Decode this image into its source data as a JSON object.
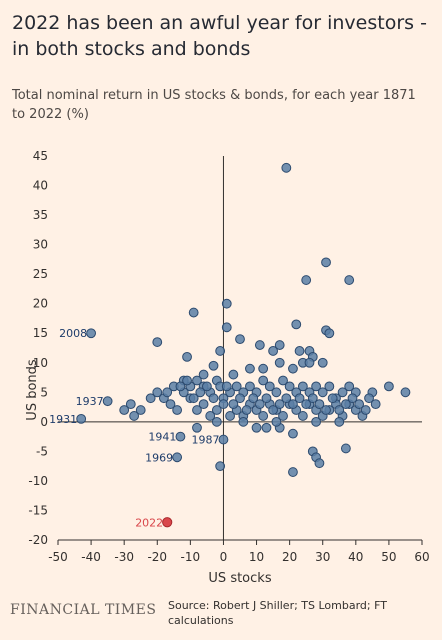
{
  "title": "2022 has been an awful year for investors - in both stocks and bonds",
  "subtitle": "Total nominal return in US stocks & bonds, for each year 1871 to 2022 (%)",
  "footer": {
    "logo": "FINANCIAL TIMES",
    "source": "Source: Robert J Shiller; TS Lombard; FT calculations"
  },
  "colors": {
    "background": "#fff1e5",
    "point": "#5a7fa6",
    "point_stroke": "#2c4a6e",
    "highlight": "#d9474b",
    "label": "#1f3d6b"
  },
  "chart_data": {
    "type": "scatter",
    "title": "",
    "xlabel": "US stocks",
    "ylabel": "US bonds",
    "xlim": [
      -50,
      60
    ],
    "ylim": [
      -20,
      45
    ],
    "xticks": [
      -50,
      -40,
      -30,
      -20,
      -10,
      0,
      10,
      20,
      30,
      40,
      50,
      60
    ],
    "yticks": [
      -20,
      -15,
      -10,
      -5,
      0,
      5,
      10,
      15,
      20,
      25,
      30,
      35,
      40,
      45
    ],
    "grid": false,
    "highlighted": [
      {
        "label": "2022",
        "x": -17,
        "y": -17,
        "color": "#d9474b"
      }
    ],
    "labeled_points": [
      {
        "label": "2008",
        "x": -40,
        "y": 15
      },
      {
        "label": "1937",
        "x": -35,
        "y": 3.5
      },
      {
        "label": "1931",
        "x": -43,
        "y": 0.5
      },
      {
        "label": "1941",
        "x": -13,
        "y": -2.5
      },
      {
        "label": "1987",
        "x": 0,
        "y": -3
      },
      {
        "label": "1969",
        "x": -14,
        "y": -6
      }
    ],
    "points": [
      [
        19,
        43
      ],
      [
        31,
        27
      ],
      [
        25,
        24
      ],
      [
        38,
        24
      ],
      [
        1,
        20
      ],
      [
        -9,
        18.5
      ],
      [
        31,
        15.5
      ],
      [
        32,
        15
      ],
      [
        22,
        16.5
      ],
      [
        -20,
        13.5
      ],
      [
        1,
        16
      ],
      [
        5,
        14
      ],
      [
        11,
        13
      ],
      [
        17,
        13
      ],
      [
        26,
        12
      ],
      [
        15,
        12
      ],
      [
        23,
        12
      ],
      [
        27,
        11
      ],
      [
        -11,
        11
      ],
      [
        -1,
        12
      ],
      [
        3,
        8
      ],
      [
        8,
        9
      ],
      [
        12,
        9
      ],
      [
        17,
        10
      ],
      [
        21,
        9
      ],
      [
        24,
        10
      ],
      [
        26,
        10
      ],
      [
        30,
        10
      ],
      [
        -3,
        9.5
      ],
      [
        -6,
        8
      ],
      [
        -15,
        6
      ],
      [
        -12,
        7
      ],
      [
        -10,
        6
      ],
      [
        -8,
        7
      ],
      [
        -6,
        6
      ],
      [
        -4,
        5
      ],
      [
        -2,
        7
      ],
      [
        0,
        4
      ],
      [
        2,
        5
      ],
      [
        4,
        6
      ],
      [
        6,
        5
      ],
      [
        8,
        6
      ],
      [
        10,
        5
      ],
      [
        12,
        7
      ],
      [
        14,
        6
      ],
      [
        16,
        5
      ],
      [
        18,
        7
      ],
      [
        20,
        6
      ],
      [
        22,
        5
      ],
      [
        24,
        6
      ],
      [
        26,
        5
      ],
      [
        28,
        6
      ],
      [
        30,
        5
      ],
      [
        32,
        6
      ],
      [
        34,
        4
      ],
      [
        36,
        5
      ],
      [
        38,
        6
      ],
      [
        40,
        5
      ],
      [
        45,
        5
      ],
      [
        50,
        6
      ],
      [
        55,
        5
      ],
      [
        -25,
        2
      ],
      [
        -22,
        4
      ],
      [
        -18,
        4
      ],
      [
        -16,
        3
      ],
      [
        -14,
        2
      ],
      [
        -12,
        5
      ],
      [
        -10,
        4
      ],
      [
        -8,
        2
      ],
      [
        -6,
        3
      ],
      [
        -4,
        1
      ],
      [
        -2,
        2
      ],
      [
        0,
        3
      ],
      [
        2,
        1
      ],
      [
        4,
        2
      ],
      [
        6,
        1
      ],
      [
        8,
        3
      ],
      [
        10,
        2
      ],
      [
        12,
        1
      ],
      [
        14,
        3
      ],
      [
        16,
        2
      ],
      [
        18,
        1
      ],
      [
        20,
        3
      ],
      [
        22,
        2
      ],
      [
        24,
        1
      ],
      [
        26,
        3
      ],
      [
        28,
        2
      ],
      [
        30,
        1
      ],
      [
        32,
        2
      ],
      [
        34,
        3
      ],
      [
        36,
        1
      ],
      [
        38,
        3
      ],
      [
        40,
        2
      ],
      [
        42,
        1
      ],
      [
        44,
        4
      ],
      [
        46,
        3
      ],
      [
        -28,
        3
      ],
      [
        -30,
        2
      ],
      [
        -27,
        1
      ],
      [
        -20,
        5
      ],
      [
        -17,
        5
      ],
      [
        -13,
        6
      ],
      [
        -11,
        7
      ],
      [
        -9,
        4
      ],
      [
        -7,
        5
      ],
      [
        -5,
        6
      ],
      [
        -3,
        4
      ],
      [
        -1,
        6
      ],
      [
        1,
        6
      ],
      [
        3,
        3
      ],
      [
        5,
        4
      ],
      [
        7,
        2
      ],
      [
        9,
        4
      ],
      [
        11,
        3
      ],
      [
        13,
        4
      ],
      [
        15,
        2
      ],
      [
        17,
        3
      ],
      [
        19,
        4
      ],
      [
        21,
        3
      ],
      [
        23,
        4
      ],
      [
        25,
        3
      ],
      [
        27,
        4
      ],
      [
        29,
        3
      ],
      [
        31,
        2
      ],
      [
        33,
        4
      ],
      [
        35,
        2
      ],
      [
        37,
        3
      ],
      [
        39,
        4
      ],
      [
        41,
        3
      ],
      [
        43,
        2
      ],
      [
        -1,
        -7.5
      ],
      [
        21,
        -8.5
      ],
      [
        27,
        -5
      ],
      [
        28,
        -6
      ],
      [
        29,
        -7
      ],
      [
        37,
        -4.5
      ],
      [
        -8,
        -1
      ],
      [
        10,
        -1
      ],
      [
        13,
        -1
      ],
      [
        17,
        -1
      ],
      [
        21,
        -2
      ],
      [
        28,
        0
      ],
      [
        35,
        0
      ],
      [
        16,
        0
      ],
      [
        6,
        0
      ],
      [
        -2,
        0
      ],
      [
        -13,
        -2.5
      ],
      [
        0,
        -3
      ],
      [
        -14,
        -6
      ],
      [
        -40,
        15
      ],
      [
        -35,
        3.5
      ],
      [
        -43,
        0.5
      ]
    ]
  }
}
